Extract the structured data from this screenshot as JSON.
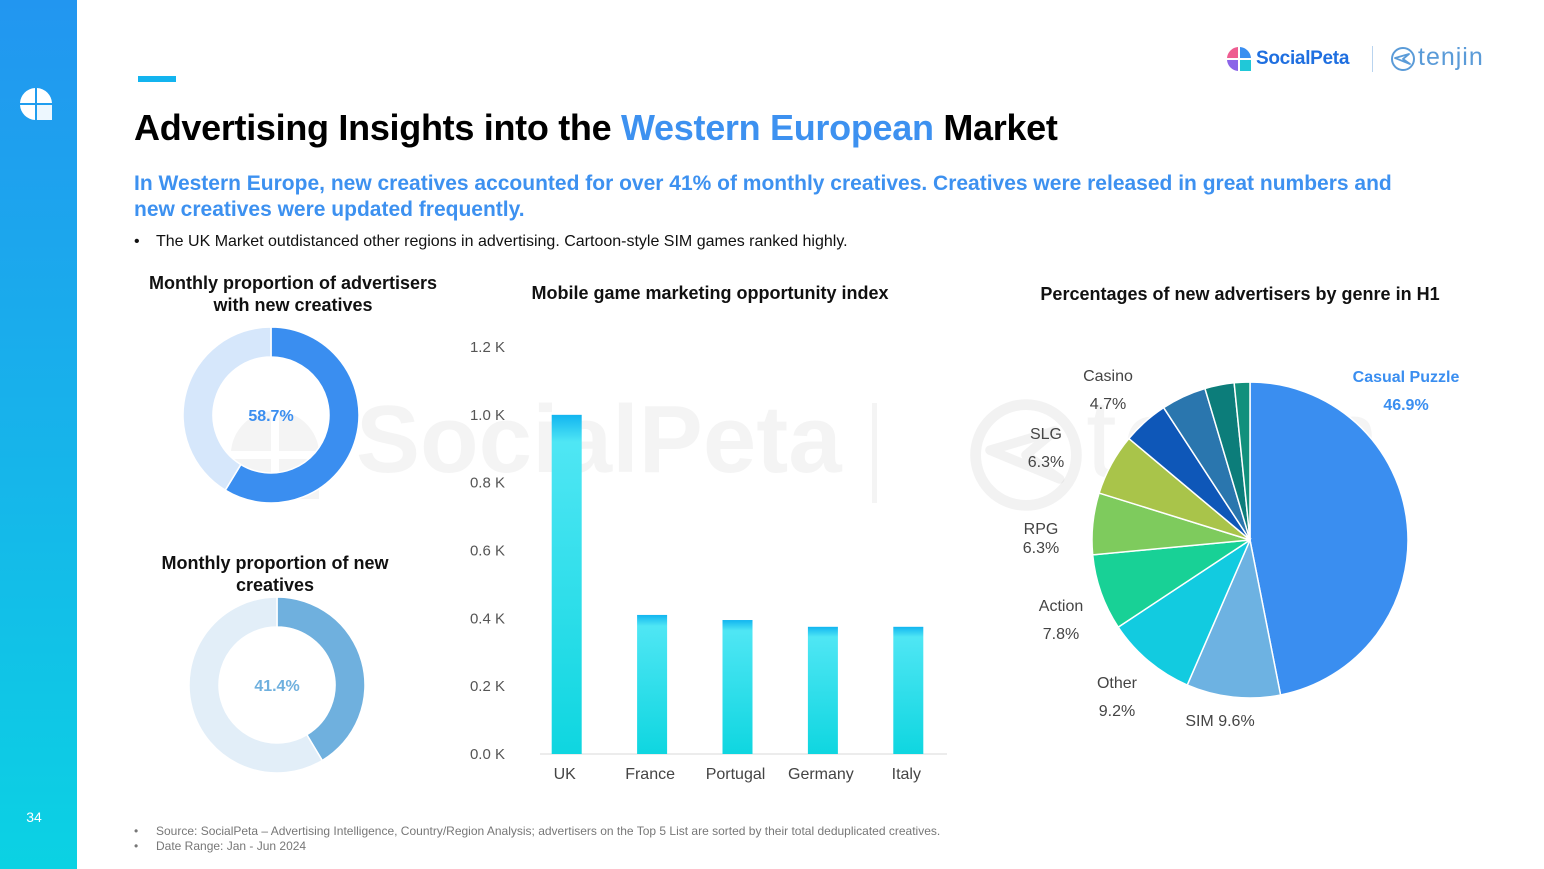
{
  "page": {
    "page_number": "34",
    "brand": {
      "social": "SocialPeta",
      "tenjin": "tenjin"
    },
    "title_parts": [
      "Advertising Insights into the ",
      "Western European",
      " Market"
    ],
    "subtitle": "In Western Europe, new creatives accounted for over 41% of monthly creatives. Creatives were released in great numbers and new creatives were updated frequently.",
    "bullet": "The UK Market outdistanced other regions in advertising. Cartoon-style SIM games ranked highly.",
    "bullet_marker": "•",
    "footer": [
      "Source: SocialPeta – Advertising Intelligence, Country/Region Analysis; advertisers on the Top 5 List are sorted by their total deduplicated creatives.",
      "Date Range: Jan - Jun 2024"
    ],
    "watermark": {
      "social": "SocialPeta",
      "tenjin": "tenjin"
    },
    "colors": {
      "accent": "#3d91f0",
      "sidebar_top": "#2296f0",
      "sidebar_bottom": "#0bd2e3"
    },
    "icons": {
      "side_logo": "socialpeta-logo-icon",
      "brand_mark": "socialpeta-logo-icon",
      "tenjin_mark": "tenjin-logo-icon"
    }
  },
  "chart_data": [
    {
      "type": "pie",
      "donut": true,
      "title": "Monthly proportion of advertisers with new creatives",
      "values": [
        58.7,
        41.3
      ],
      "center_label": "58.7%",
      "colors": [
        "#3a8ef0",
        "#d6e7fb"
      ]
    },
    {
      "type": "pie",
      "donut": true,
      "title": "Monthly proportion of new creatives",
      "values": [
        41.4,
        58.6
      ],
      "center_label": "41.4%",
      "colors": [
        "#6fb0de",
        "#e2eef8"
      ]
    },
    {
      "type": "bar",
      "title": "Mobile game marketing opportunity index",
      "categories": [
        "UK",
        "France",
        "Portugal",
        "Germany",
        "Italy"
      ],
      "values": [
        1.0,
        0.41,
        0.395,
        0.375,
        0.375
      ],
      "ylim": [
        0,
        1.2
      ],
      "yticks": [
        0,
        0.2,
        0.4,
        0.6,
        0.8,
        1.0,
        1.2
      ],
      "ytick_labels": [
        "0.0 K",
        "0.2 K",
        "0.4 K",
        "0.6 K",
        "0.8 K",
        "1.0 K",
        "1.2 K"
      ],
      "grid": false,
      "color_top": "#12b5f0",
      "color_bottom": "#0fd6e0"
    },
    {
      "type": "pie",
      "title": "Percentages of new advertisers by genre in H1",
      "slices": [
        {
          "name": "Casual Puzzle",
          "value": 46.9,
          "label": "46.9%",
          "color": "#3a8ef0"
        },
        {
          "name": "SIM",
          "value": 9.6,
          "label": "9.6%",
          "color": "#6db2e2"
        },
        {
          "name": "Other",
          "value": 9.2,
          "label": "9.2%",
          "color": "#12cbe0"
        },
        {
          "name": "Action",
          "value": 7.8,
          "label": "7.8%",
          "color": "#18d196"
        },
        {
          "name": "RPG",
          "value": 6.3,
          "label": "6.3%",
          "color": "#7ecb5d"
        },
        {
          "name": "SLG",
          "value": 6.3,
          "label": "6.3%",
          "color": "#a9c44a"
        },
        {
          "name": "Casino",
          "value": 4.7,
          "label": "4.7%",
          "color": "#0e57b8"
        },
        {
          "name": "",
          "value": 4.6,
          "label": "",
          "color": "#2a76ae"
        },
        {
          "name": "",
          "value": 3.0,
          "label": "",
          "color": "#0c7d7a"
        },
        {
          "name": "",
          "value": 1.6,
          "label": "",
          "color": "#12907c"
        }
      ]
    }
  ]
}
